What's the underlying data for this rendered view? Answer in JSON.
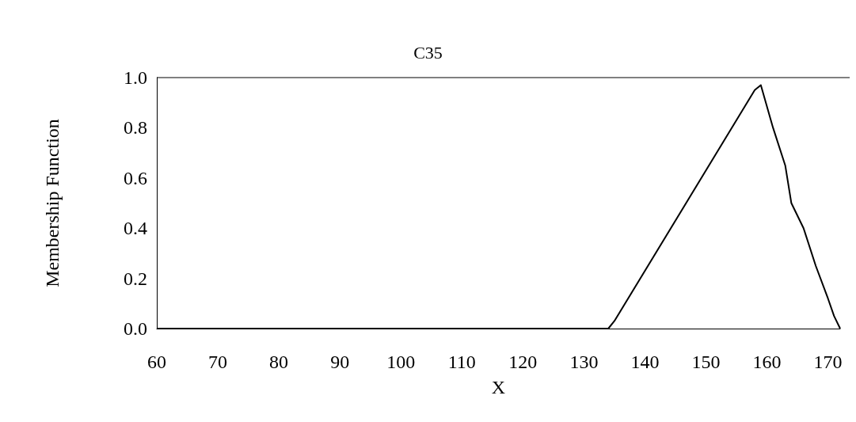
{
  "chart_data": {
    "type": "line",
    "title": "C35",
    "xlabel": "X",
    "ylabel": "Membership Function",
    "series": [
      {
        "color": "#000000",
        "x": [
          60,
          134,
          135,
          158,
          159,
          161,
          163,
          164,
          166,
          168,
          170,
          171,
          172
        ],
        "values": [
          0,
          0,
          0.03,
          0.95,
          0.97,
          0.8,
          0.65,
          0.5,
          0.4,
          0.25,
          0.12,
          0.05,
          0
        ]
      }
    ],
    "xlim": [
      60,
      172
    ],
    "xticks": [
      60,
      70,
      80,
      90,
      100,
      110,
      120,
      130,
      140,
      150,
      160,
      170
    ],
    "ylim": [
      0,
      1
    ],
    "yticks": [
      {
        "value": 0,
        "label": "0.0"
      },
      0.2,
      0.4,
      0.6,
      0.8,
      {
        "value": 1,
        "label": "1.0"
      }
    ],
    "grid": false,
    "marker": "none",
    "line_style": "solid"
  }
}
